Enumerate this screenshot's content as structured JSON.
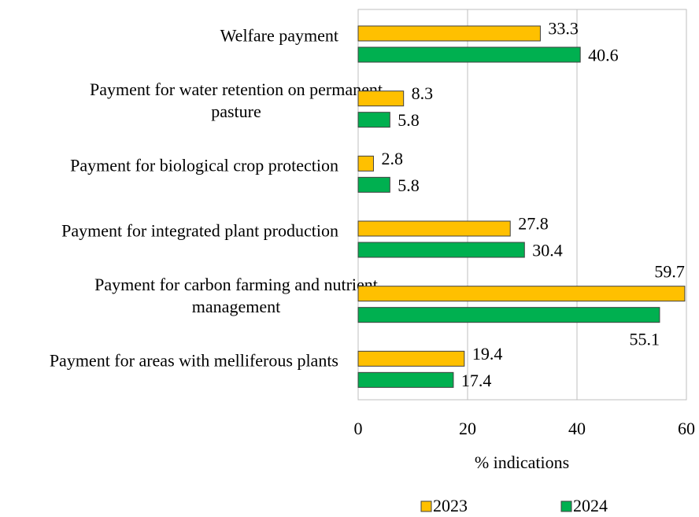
{
  "chart_data": {
    "type": "bar",
    "orientation": "horizontal",
    "categories": [
      "Welfare payment",
      "Payment for water retention on permanent pasture",
      "Payment for biological crop protection",
      "Payment for integrated plant production",
      "Payment for carbon farming and nutrient management",
      "Payment for areas with melliferous plants"
    ],
    "series": [
      {
        "name": "2023",
        "color": "#ffc000",
        "values": [
          33.3,
          8.3,
          2.8,
          27.8,
          59.7,
          19.4
        ]
      },
      {
        "name": "2024",
        "color": "#00b050",
        "values": [
          40.6,
          5.8,
          5.8,
          30.4,
          55.1,
          17.4
        ]
      }
    ],
    "xlabel": "% indications",
    "xlim": [
      0,
      60
    ],
    "xticks": [
      0,
      20,
      40,
      60
    ],
    "grid": true,
    "legend": "bottom"
  }
}
